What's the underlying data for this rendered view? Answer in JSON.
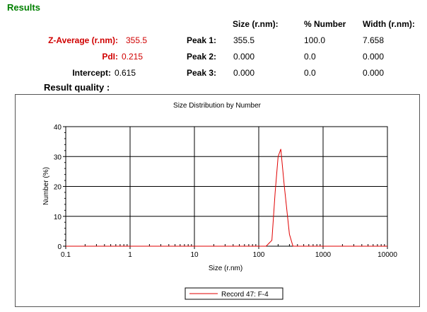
{
  "results": {
    "title": "Results",
    "z_average_label": "Z-Average (r.nm):",
    "z_average_value": "355.5",
    "pdi_label": "PdI:",
    "pdi_value": "0.215",
    "intercept_label": "Intercept:",
    "intercept_value": "0.615",
    "quality_label": "Result quality :"
  },
  "peaks": {
    "headers": {
      "size": "Size (r.nm):",
      "number": "% Number",
      "width": "Width (r.nm):"
    },
    "rows": [
      {
        "label": "Peak 1:",
        "size": "355.5",
        "number": "100.0",
        "width": "7.658"
      },
      {
        "label": "Peak 2:",
        "size": "0.000",
        "number": "0.0",
        "width": "0.000"
      },
      {
        "label": "Peak 3:",
        "size": "0.000",
        "number": "0.0",
        "width": "0.000"
      }
    ]
  },
  "colors": {
    "title_green": "#008000",
    "value_red": "#d00000",
    "series_red": "#e00000"
  },
  "chart_data": {
    "type": "line",
    "title": "Size Distribution by Number",
    "xlabel": "Size (r.nm)",
    "ylabel": "Number (%)",
    "x_scale": "log",
    "xlim": [
      0.1,
      10000
    ],
    "ylim": [
      0,
      40
    ],
    "x_ticks": [
      "0.1",
      "1",
      "10",
      "100",
      "1000",
      "10000"
    ],
    "y_ticks": [
      "0",
      "10",
      "20",
      "30",
      "40"
    ],
    "grid": true,
    "legend_position": "bottom-center",
    "series": [
      {
        "name": "Record 47: F-4",
        "color": "#e00000",
        "x": [
          0.1,
          130,
          160,
          180,
          200,
          220,
          250,
          300,
          340,
          10000
        ],
        "y": [
          0,
          0,
          2,
          18,
          30,
          32.5,
          20,
          4,
          0,
          0
        ]
      }
    ]
  }
}
